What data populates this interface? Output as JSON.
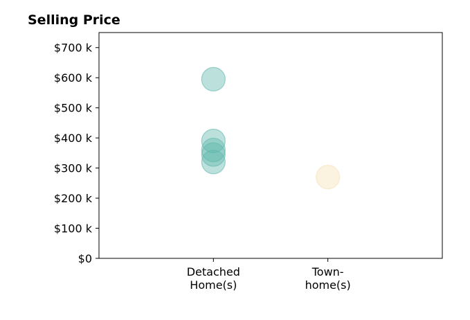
{
  "chart_data": {
    "type": "scatter",
    "title": "Selling Price",
    "xlabel": "",
    "ylabel": "",
    "categories": [
      {
        "line1": "Detached",
        "line2": "Home(s)"
      },
      {
        "line1": "Town-",
        "line2": "home(s)"
      }
    ],
    "y_ticks": [
      0,
      100,
      200,
      300,
      400,
      500,
      600,
      700
    ],
    "y_tick_labels": [
      "$0",
      "$100 k",
      "$200 k",
      "$300 k",
      "$400 k",
      "$500 k",
      "$600 k",
      "$700 k"
    ],
    "ylim": [
      0,
      750
    ],
    "xlim": [
      -1,
      2
    ],
    "grid": false,
    "series": [
      {
        "category_index": 0,
        "color": "#5fb8ab",
        "values": [
          595,
          390,
          360,
          345,
          320
        ]
      },
      {
        "category_index": 1,
        "color": "#f5dfb5",
        "values": [
          270
        ]
      }
    ]
  }
}
